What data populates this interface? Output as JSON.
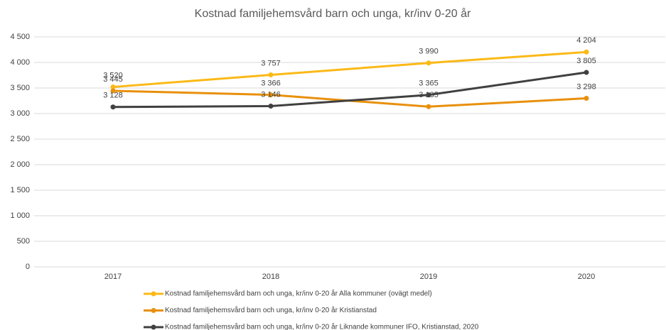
{
  "chart_data": {
    "type": "line",
    "title": "Kostnad familjehemsvård barn och unga, kr/inv 0-20 år",
    "categories": [
      "2017",
      "2018",
      "2019",
      "2020"
    ],
    "series": [
      {
        "name": "Kostnad familjehemsvård barn och unga, kr/inv 0-20 år Alla kommuner (ovägt medel)",
        "color": "#fbb917",
        "values": [
          3520,
          3757,
          3990,
          4204
        ],
        "value_labels": [
          "3 520",
          "3 757",
          "3 990",
          "4 204"
        ]
      },
      {
        "name": "Kostnad familjehemsvård barn och unga, kr/inv 0-20 år Kristianstad",
        "color": "#e8900c",
        "values": [
          3445,
          3366,
          3135,
          3298
        ],
        "value_labels": [
          "3 445",
          "3 366",
          "3 135",
          "3 298"
        ]
      },
      {
        "name": "Kostnad familjehemsvård barn och unga, kr/inv 0-20 år Liknande kommuner IFO, Kristianstad, 2020",
        "color": "#404040",
        "values": [
          3128,
          3146,
          3365,
          3805
        ],
        "value_labels": [
          "3 128",
          "3 146",
          "3 365",
          "3 805"
        ]
      }
    ],
    "ylim": [
      0,
      4500
    ],
    "yticks": [
      0,
      500,
      {
        "value": 1000,
        "label": "1 000"
      },
      {
        "value": 1500,
        "label": "1 500"
      },
      {
        "value": 2000,
        "label": "2 000"
      },
      {
        "value": 2500,
        "label": "2 500"
      },
      {
        "value": 3000,
        "label": "3 000"
      },
      {
        "value": 3500,
        "label": "3 500"
      },
      {
        "value": 4000,
        "label": "4 000"
      },
      {
        "value": 4500,
        "label": "4 500"
      }
    ],
    "grid": true,
    "legend": "bottom"
  }
}
